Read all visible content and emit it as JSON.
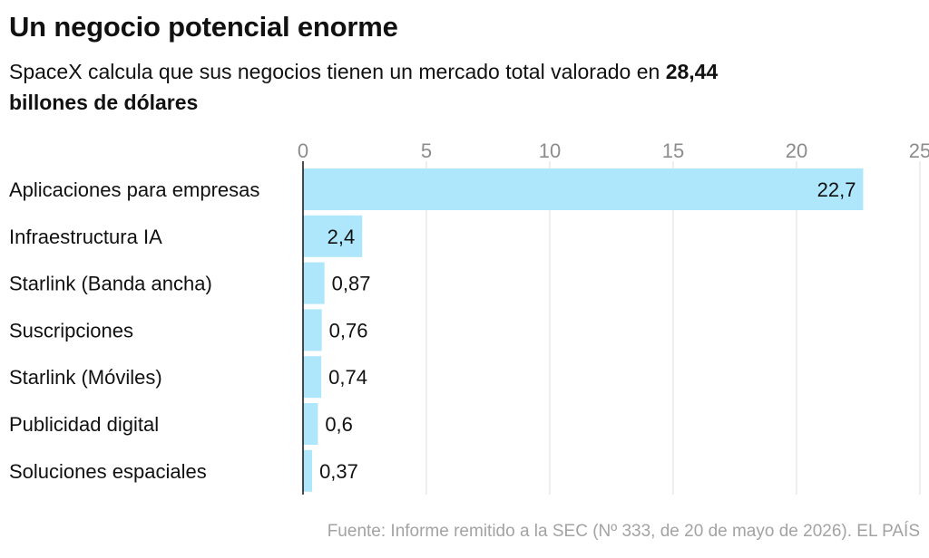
{
  "title": "Un negocio potencial enorme",
  "subtitle": {
    "text": "SpaceX calcula que sus negocios tienen un mercado total valorado en ",
    "highlight_value": "28,44",
    "highlight_unit": "billones de dólares"
  },
  "source": "Fuente: Informe remitido a la SEC (Nº 333, de 20 de mayo de 2026). EL PAÍS",
  "colors": {
    "bar": "#aee7fb",
    "grid": "#dedede",
    "axis": "#111111",
    "tick_label": "#8c8c8c",
    "text": "#111111"
  },
  "chart_data": {
    "type": "bar",
    "orientation": "horizontal",
    "categories": [
      "Aplicaciones para empresas",
      "Infraestructura IA",
      "Starlink (Banda ancha)",
      "Suscripciones",
      "Starlink (Móviles)",
      "Publicidad digital",
      "Soluciones espaciales"
    ],
    "values": [
      22.7,
      2.4,
      0.87,
      0.76,
      0.74,
      0.6,
      0.37
    ],
    "value_labels": [
      "22,7",
      "2,4",
      "0,87",
      "0,76",
      "0,74",
      "0,6",
      "0,37"
    ],
    "xlim": [
      0,
      25
    ],
    "xticks": [
      0,
      5,
      10,
      15,
      20,
      25
    ],
    "xtick_labels": [
      "0",
      "5",
      "10",
      "15",
      "20",
      "25"
    ],
    "tick_position": "top",
    "grid": true,
    "legend": "none"
  }
}
